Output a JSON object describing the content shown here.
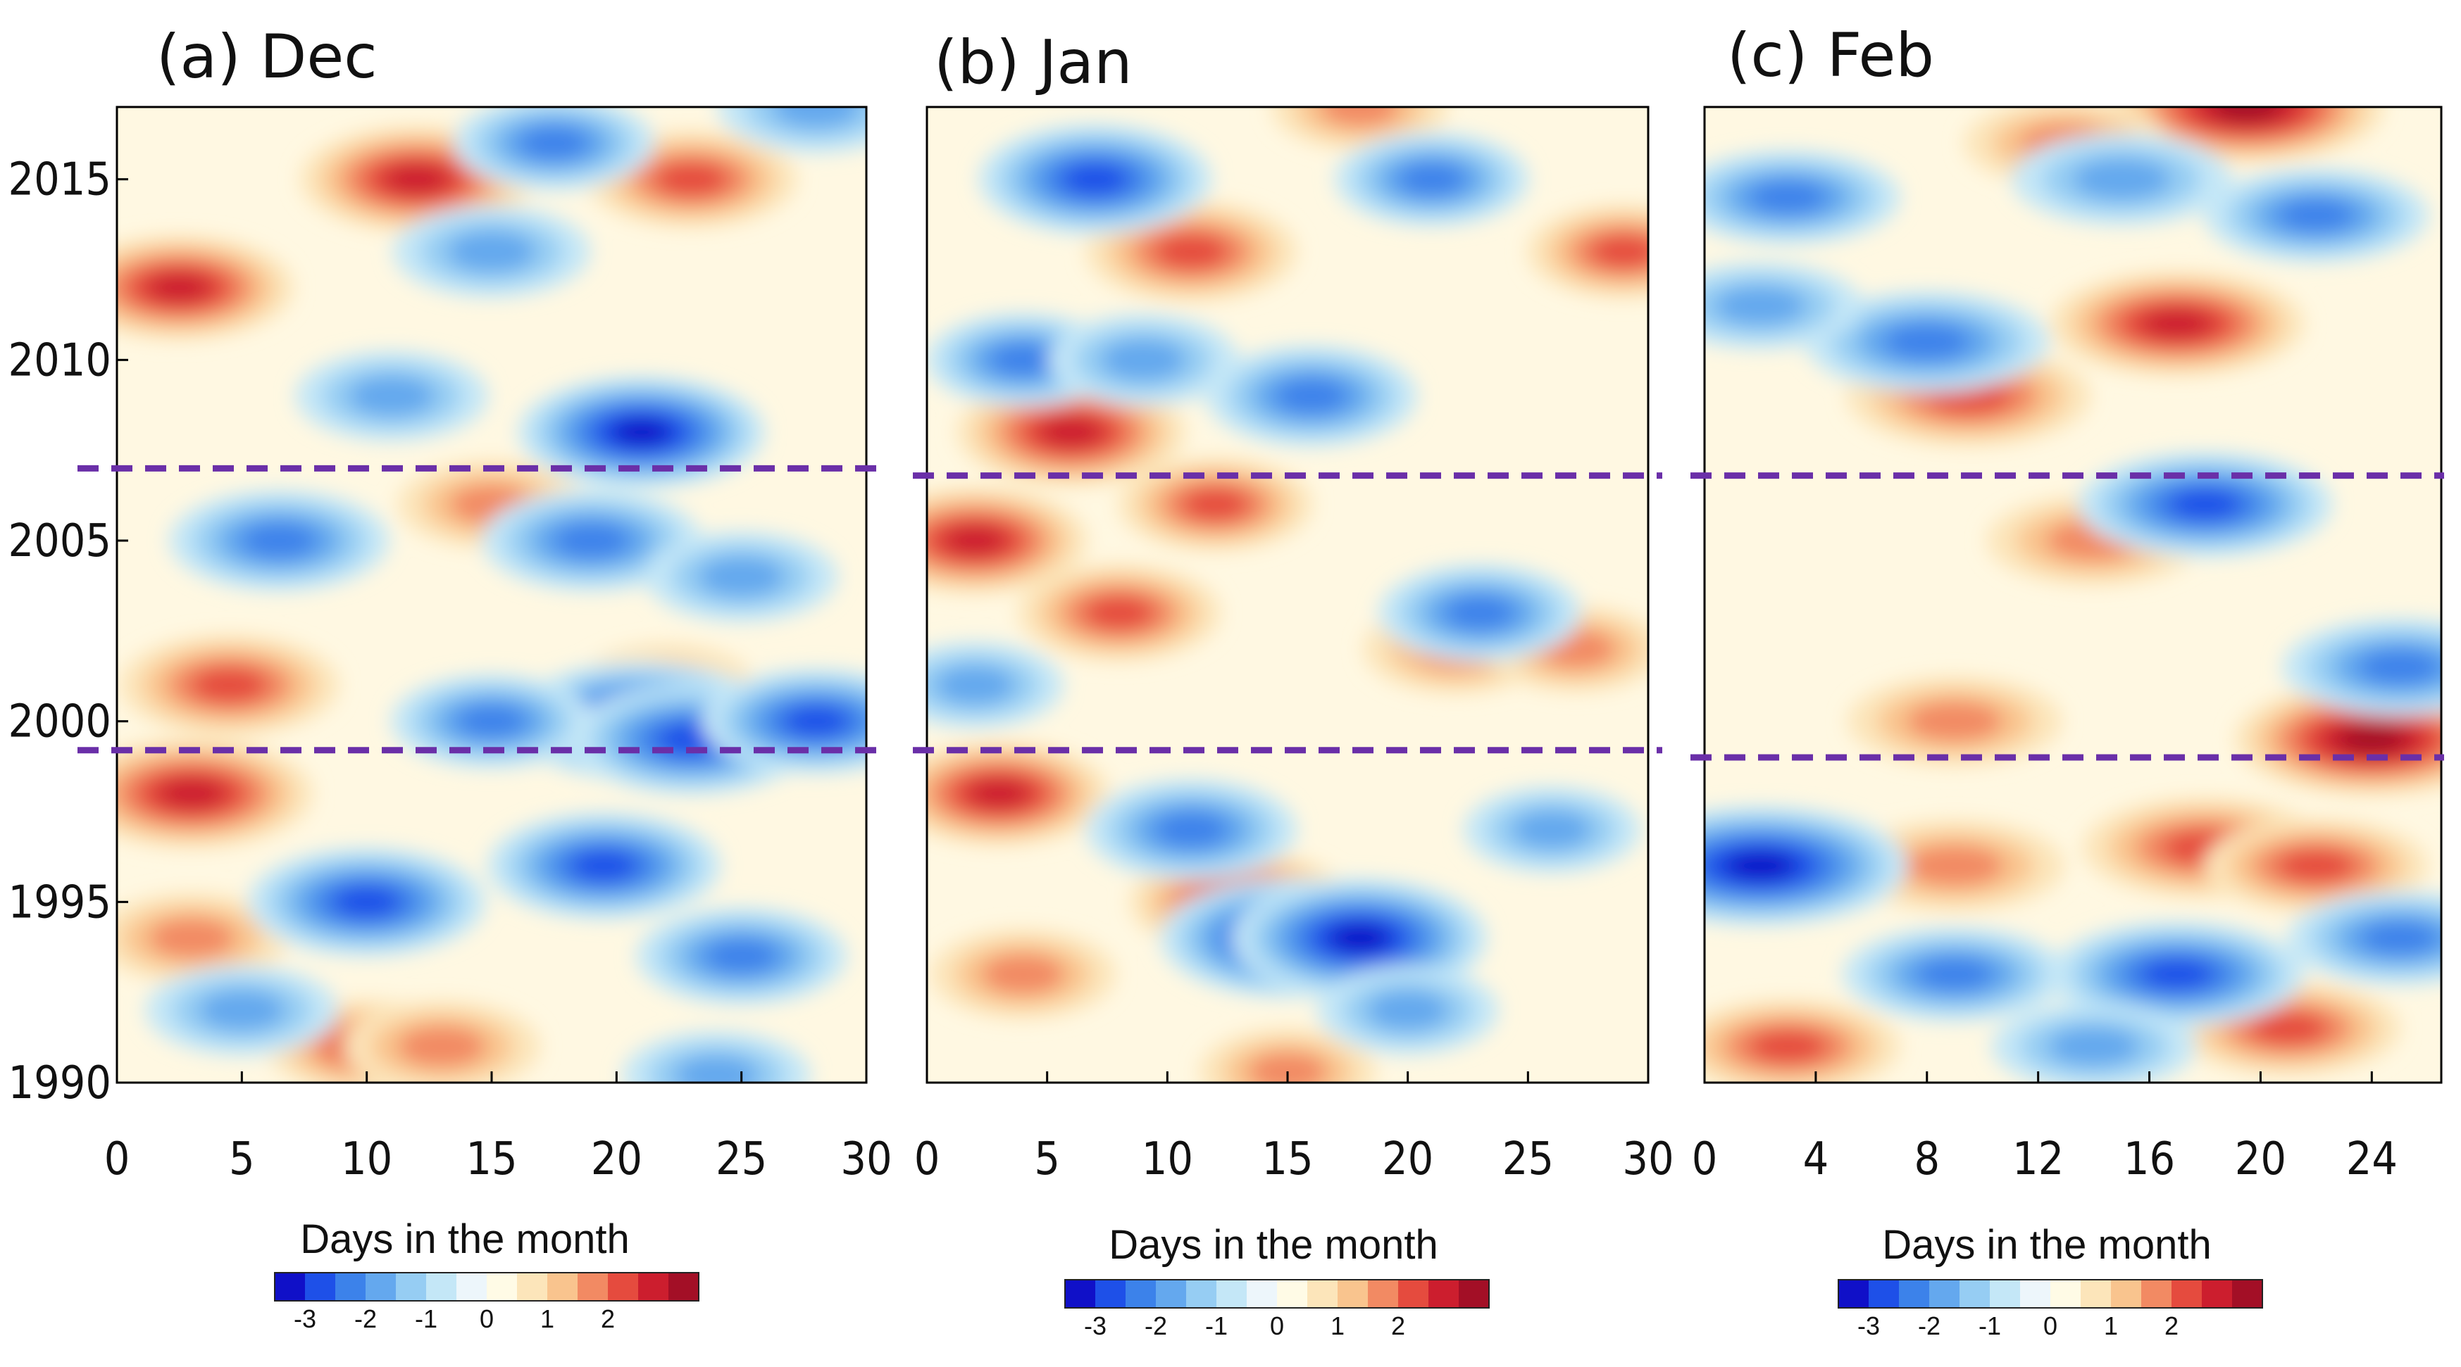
{
  "figure": {
    "panels": [
      "Dec",
      "Jan",
      "Feb"
    ]
  },
  "chart_data": [
    {
      "type": "heatmap",
      "title": "(a) Dec",
      "xlabel": "Days in the month",
      "ylabel": "",
      "xlim": [
        0,
        30
      ],
      "ylim": [
        1990,
        2017
      ],
      "xticks": [
        "0",
        "5",
        "10",
        "15",
        "20",
        "25",
        "30"
      ],
      "yticks": [
        "1990",
        "1995",
        "2000",
        "2005",
        "2010",
        "2015"
      ],
      "reference_lines": [
        1999.2,
        2007
      ],
      "colorbar": {
        "levels": [
          -3.5,
          -3,
          -2.5,
          -2,
          -1.5,
          -1,
          -0.5,
          0,
          0.5,
          1,
          1.5,
          2,
          2.5,
          3
        ],
        "tick_labels": [
          "-3",
          "-2",
          "-1",
          "0",
          "1",
          "2"
        ]
      },
      "anomalies": [
        {
          "x": 3,
          "y": 1998,
          "v": 2.5
        },
        {
          "x": 2.5,
          "y": 2012,
          "v": 2.2
        },
        {
          "x": 12,
          "y": 2015,
          "v": 2.3
        },
        {
          "x": 23,
          "y": 2015,
          "v": 1.8
        },
        {
          "x": 4.5,
          "y": 2001,
          "v": 2
        },
        {
          "x": 3,
          "y": 1994,
          "v": 1.4
        },
        {
          "x": 10,
          "y": 1991,
          "v": 1.6
        },
        {
          "x": 13,
          "y": 1991,
          "v": 1.5
        },
        {
          "x": 15,
          "y": 2006,
          "v": 1.3
        },
        {
          "x": 22,
          "y": 2001,
          "v": 1
        },
        {
          "x": 10,
          "y": 1995,
          "v": -2.4
        },
        {
          "x": 6.5,
          "y": 2005,
          "v": -2
        },
        {
          "x": 19,
          "y": 2005,
          "v": -2
        },
        {
          "x": 21,
          "y": 2008,
          "v": -2.6
        },
        {
          "x": 21,
          "y": 2000,
          "v": -3
        },
        {
          "x": 23,
          "y": 1999.5,
          "v": -2.5
        },
        {
          "x": 28,
          "y": 2000,
          "v": -2.2
        },
        {
          "x": 19.5,
          "y": 1996,
          "v": -2.3
        },
        {
          "x": 25,
          "y": 1993.5,
          "v": -1.8
        },
        {
          "x": 15,
          "y": 2013,
          "v": -1.5
        },
        {
          "x": 17.5,
          "y": 2016,
          "v": -1.6
        },
        {
          "x": 25,
          "y": 2004,
          "v": -1.4
        },
        {
          "x": 11,
          "y": 2009,
          "v": -1.4
        },
        {
          "x": 5,
          "y": 1992,
          "v": -1.4
        },
        {
          "x": 24,
          "y": 1990.2,
          "v": -1.3
        },
        {
          "x": 28,
          "y": 2017,
          "v": -1.5
        },
        {
          "x": 15,
          "y": 2000,
          "v": -1.6
        }
      ]
    },
    {
      "type": "heatmap",
      "title": "(b) Jan",
      "xlabel": "Days in the month",
      "ylabel": "",
      "xlim": [
        0,
        30
      ],
      "ylim": [
        1990,
        2017
      ],
      "xticks": [
        "0",
        "5",
        "10",
        "15",
        "20",
        "25",
        "30"
      ],
      "yticks": [],
      "reference_lines": [
        1999.2,
        2006.8
      ],
      "colorbar": {
        "levels": [
          -3.5,
          -3,
          -2.5,
          -2,
          -1.5,
          -1,
          -0.5,
          0,
          0.5,
          1,
          1.5,
          2,
          2.5,
          3
        ],
        "tick_labels": [
          "-3",
          "-2",
          "-1",
          "0",
          "1",
          "2"
        ]
      },
      "anomalies": [
        {
          "x": 6,
          "y": 2008,
          "v": 2.4
        },
        {
          "x": 2,
          "y": 2005,
          "v": 2.3
        },
        {
          "x": 11,
          "y": 2013,
          "v": 2
        },
        {
          "x": 3,
          "y": 1998,
          "v": 2.2
        },
        {
          "x": 13,
          "y": 1995,
          "v": 2.2
        },
        {
          "x": 8,
          "y": 2003,
          "v": 1.8
        },
        {
          "x": 12,
          "y": 2006,
          "v": 1.6
        },
        {
          "x": 22,
          "y": 2002,
          "v": 1.4
        },
        {
          "x": 27,
          "y": 2002,
          "v": 1.2
        },
        {
          "x": 29,
          "y": 2013,
          "v": 1.6
        },
        {
          "x": 18,
          "y": 2017,
          "v": 1.2
        },
        {
          "x": 15,
          "y": 1990.3,
          "v": 1.2
        },
        {
          "x": 4,
          "y": 1993,
          "v": 1.4
        },
        {
          "x": 7,
          "y": 2015,
          "v": -2.5
        },
        {
          "x": 15,
          "y": 1994,
          "v": -3
        },
        {
          "x": 18,
          "y": 1994,
          "v": -3
        },
        {
          "x": 11,
          "y": 1997,
          "v": -2
        },
        {
          "x": 16,
          "y": 2009,
          "v": -2
        },
        {
          "x": 23,
          "y": 2003,
          "v": -1.8
        },
        {
          "x": 21,
          "y": 2015,
          "v": -1.6
        },
        {
          "x": 4,
          "y": 2010,
          "v": -1.6
        },
        {
          "x": 20,
          "y": 1992,
          "v": -1.3
        },
        {
          "x": 26,
          "y": 1997,
          "v": -1.2
        },
        {
          "x": 9,
          "y": 2010,
          "v": -1.5
        },
        {
          "x": 2,
          "y": 2001,
          "v": -1.2
        }
      ]
    },
    {
      "type": "heatmap",
      "title": "(c) Feb",
      "xlabel": "Days in the month",
      "ylabel": "",
      "xlim": [
        0,
        26.5
      ],
      "ylim": [
        1990,
        2017
      ],
      "xticks": [
        "0",
        "4",
        "8",
        "12",
        "16",
        "20",
        "24"
      ],
      "yticks": [],
      "reference_lines": [
        1999,
        2006.8
      ],
      "colorbar": {
        "levels": [
          -3.5,
          -3,
          -2.5,
          -2,
          -1.5,
          -1,
          -0.5,
          0,
          0.5,
          1,
          1.5,
          2,
          2.5,
          3
        ],
        "tick_labels": [
          "-3",
          "-2",
          "-1",
          "0",
          "1",
          "2"
        ]
      },
      "anomalies": [
        {
          "x": 19.5,
          "y": 2017,
          "v": 2.6
        },
        {
          "x": 17,
          "y": 2011,
          "v": 2.2
        },
        {
          "x": 9.5,
          "y": 2009,
          "v": 2
        },
        {
          "x": 24,
          "y": 1999.5,
          "v": 2.6
        },
        {
          "x": 18,
          "y": 1996.5,
          "v": 2
        },
        {
          "x": 22,
          "y": 1996,
          "v": 1.6
        },
        {
          "x": 3,
          "y": 1991,
          "v": 1.6
        },
        {
          "x": 21,
          "y": 1991.5,
          "v": 1.6
        },
        {
          "x": 9,
          "y": 1996,
          "v": 1.5
        },
        {
          "x": 14,
          "y": 2005,
          "v": 1.4
        },
        {
          "x": 9,
          "y": 2000,
          "v": 1.4
        },
        {
          "x": 13,
          "y": 2016,
          "v": 1.2
        },
        {
          "x": 2,
          "y": 1996,
          "v": -3
        },
        {
          "x": 3,
          "y": 2014.5,
          "v": -1.6
        },
        {
          "x": 8,
          "y": 2010.5,
          "v": -2
        },
        {
          "x": 18,
          "y": 2006,
          "v": -2.2
        },
        {
          "x": 25,
          "y": 2001.5,
          "v": -1.8
        },
        {
          "x": 17,
          "y": 1993,
          "v": -2.2
        },
        {
          "x": 9,
          "y": 1993,
          "v": -1.6
        },
        {
          "x": 15,
          "y": 2015,
          "v": -1.5
        },
        {
          "x": 22,
          "y": 2014,
          "v": -1.6
        },
        {
          "x": 2,
          "y": 2011.5,
          "v": -1.2
        },
        {
          "x": 14,
          "y": 1991,
          "v": -1.2
        },
        {
          "x": 25,
          "y": 1994,
          "v": -1.6
        }
      ]
    }
  ],
  "colors": {
    "cmap": [
      "#1010c8",
      "#1e50e8",
      "#3c82ea",
      "#64a8ee",
      "#96cdf3",
      "#c4e7f7",
      "#edf6fb",
      "#fffbe6",
      "#fce5ba",
      "#f9c48e",
      "#f28a63",
      "#e54b3e",
      "#cc1e2e",
      "#a30f26"
    ],
    "reference_line": "#6a2fa8"
  }
}
